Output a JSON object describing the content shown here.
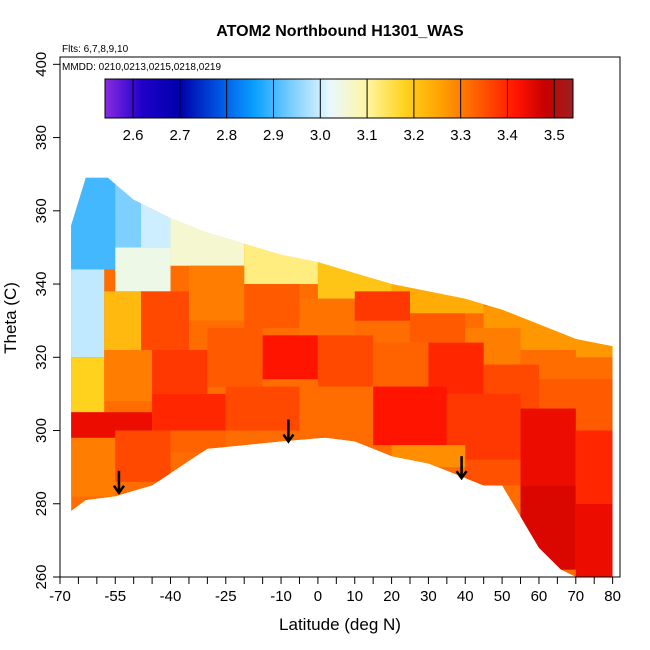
{
  "chart_data": {
    "type": "heatmap",
    "title": "ATOM2 Northbound H1301_WAS",
    "flights_note": "Flts: 6,7,8,9,10",
    "dates_note": "MMDD: 0210,0213,0215,0218,0219",
    "xlabel": "Latitude (deg N)",
    "ylabel": "Theta (C)",
    "xlim": [
      -70,
      82
    ],
    "ylim": [
      260,
      402
    ],
    "x_ticks": [
      -70,
      -55,
      -40,
      -25,
      -10,
      0,
      10,
      20,
      30,
      40,
      50,
      60,
      70,
      80
    ],
    "x_tick_labels": [
      "-70",
      "-55",
      "-40",
      "-25",
      "-10",
      "0",
      "10",
      "20",
      "30",
      "40",
      "50",
      "60",
      "70",
      "80"
    ],
    "x_minor_ticks": [
      -65,
      -60,
      -50,
      -45,
      -35,
      -30,
      -20,
      -15,
      -5,
      5,
      15,
      25,
      35,
      45,
      55,
      65,
      75
    ],
    "y_ticks": [
      260,
      280,
      300,
      320,
      340,
      360,
      380,
      400
    ],
    "y_tick_labels": [
      "260",
      "280",
      "300",
      "320",
      "340",
      "360",
      "380",
      "400"
    ],
    "colorbar": {
      "range": [
        2.54,
        3.54
      ],
      "ticks": [
        2.6,
        2.7,
        2.8,
        2.9,
        3.0,
        3.1,
        3.2,
        3.3,
        3.4,
        3.5
      ],
      "tick_labels": [
        "2.6",
        "2.7",
        "2.8",
        "2.9",
        "3.0",
        "3.1",
        "3.2",
        "3.3",
        "3.4",
        "3.5"
      ],
      "stops": [
        {
          "v": 2.54,
          "color": "#8a2be2"
        },
        {
          "v": 2.62,
          "color": "#1e00c8"
        },
        {
          "v": 2.7,
          "color": "#0000aa"
        },
        {
          "v": 2.78,
          "color": "#0050e0"
        },
        {
          "v": 2.86,
          "color": "#0aa0ff"
        },
        {
          "v": 2.94,
          "color": "#7ccfff"
        },
        {
          "v": 3.02,
          "color": "#e8f8ff"
        },
        {
          "v": 3.1,
          "color": "#fff6a0"
        },
        {
          "v": 3.18,
          "color": "#ffd21e"
        },
        {
          "v": 3.26,
          "color": "#ffa000"
        },
        {
          "v": 3.34,
          "color": "#ff5a00"
        },
        {
          "v": 3.42,
          "color": "#ff1400"
        },
        {
          "v": 3.48,
          "color": "#c80000"
        },
        {
          "v": 3.54,
          "color": "#9b2020"
        }
      ]
    },
    "domain_top": [
      [
        -67,
        356
      ],
      [
        -63,
        369
      ],
      [
        -57,
        369
      ],
      [
        -50,
        363
      ],
      [
        -40,
        358
      ],
      [
        -30,
        354
      ],
      [
        -20,
        351
      ],
      [
        -10,
        348
      ],
      [
        0,
        346
      ],
      [
        10,
        343
      ],
      [
        20,
        340
      ],
      [
        30,
        338
      ],
      [
        40,
        336
      ],
      [
        50,
        333
      ],
      [
        60,
        329
      ],
      [
        70,
        325
      ],
      [
        80,
        323
      ],
      [
        80,
        312
      ]
    ],
    "domain_bottom": [
      [
        80,
        260
      ],
      [
        70,
        260
      ],
      [
        66,
        262
      ],
      [
        60,
        268
      ],
      [
        50,
        285
      ],
      [
        45,
        285
      ],
      [
        40,
        287
      ],
      [
        30,
        291
      ],
      [
        20,
        293
      ],
      [
        10,
        297
      ],
      [
        2,
        298
      ],
      [
        -10,
        297
      ],
      [
        -20,
        296
      ],
      [
        -30,
        295
      ],
      [
        -45,
        285
      ],
      [
        -55,
        282
      ],
      [
        -63,
        281
      ],
      [
        -67,
        278
      ]
    ],
    "cells": [
      {
        "x": [
          -67,
          -55
        ],
        "y": [
          344,
          370
        ],
        "v": 2.9
      },
      {
        "x": [
          -67,
          -58
        ],
        "y": [
          320,
          344
        ],
        "v": 2.99
      },
      {
        "x": [
          -55,
          -48
        ],
        "y": [
          350,
          368
        ],
        "v": 2.94
      },
      {
        "x": [
          -55,
          -40
        ],
        "y": [
          338,
          350
        ],
        "v": 3.04
      },
      {
        "x": [
          -48,
          -40
        ],
        "y": [
          350,
          362
        ],
        "v": 3.0
      },
      {
        "x": [
          -40,
          -20
        ],
        "y": [
          345,
          360
        ],
        "v": 3.06
      },
      {
        "x": [
          -20,
          0
        ],
        "y": [
          340,
          352
        ],
        "v": 3.12
      },
      {
        "x": [
          0,
          20
        ],
        "y": [
          336,
          346
        ],
        "v": 3.2
      },
      {
        "x": [
          20,
          45
        ],
        "y": [
          332,
          340
        ],
        "v": 3.24
      },
      {
        "x": [
          45,
          80
        ],
        "y": [
          320,
          334
        ],
        "v": 3.27
      },
      {
        "x": [
          -58,
          -48
        ],
        "y": [
          320,
          338
        ],
        "v": 3.22
      },
      {
        "x": [
          -48,
          -35
        ],
        "y": [
          322,
          338
        ],
        "v": 3.36
      },
      {
        "x": [
          -35,
          -20
        ],
        "y": [
          330,
          345
        ],
        "v": 3.3
      },
      {
        "x": [
          -20,
          -5
        ],
        "y": [
          328,
          340
        ],
        "v": 3.34
      },
      {
        "x": [
          -5,
          10
        ],
        "y": [
          326,
          336
        ],
        "v": 3.31
      },
      {
        "x": [
          10,
          25
        ],
        "y": [
          330,
          338
        ],
        "v": 3.38
      },
      {
        "x": [
          25,
          40
        ],
        "y": [
          324,
          332
        ],
        "v": 3.34
      },
      {
        "x": [
          40,
          55
        ],
        "y": [
          318,
          328
        ],
        "v": 3.3
      },
      {
        "x": [
          55,
          70
        ],
        "y": [
          314,
          322
        ],
        "v": 3.32
      },
      {
        "x": [
          -67,
          -58
        ],
        "y": [
          305,
          320
        ],
        "v": 3.18
      },
      {
        "x": [
          -58,
          -45
        ],
        "y": [
          308,
          322
        ],
        "v": 3.3
      },
      {
        "x": [
          -45,
          -30
        ],
        "y": [
          310,
          322
        ],
        "v": 3.38
      },
      {
        "x": [
          -30,
          -15
        ],
        "y": [
          312,
          328
        ],
        "v": 3.34
      },
      {
        "x": [
          -15,
          0
        ],
        "y": [
          314,
          326
        ],
        "v": 3.42
      },
      {
        "x": [
          0,
          15
        ],
        "y": [
          312,
          326
        ],
        "v": 3.36
      },
      {
        "x": [
          15,
          30
        ],
        "y": [
          312,
          324
        ],
        "v": 3.33
      },
      {
        "x": [
          30,
          45
        ],
        "y": [
          310,
          324
        ],
        "v": 3.4
      },
      {
        "x": [
          45,
          60
        ],
        "y": [
          306,
          318
        ],
        "v": 3.36
      },
      {
        "x": [
          60,
          80
        ],
        "y": [
          300,
          314
        ],
        "v": 3.34
      },
      {
        "x": [
          -67,
          -45
        ],
        "y": [
          298,
          305
        ],
        "v": 3.44
      },
      {
        "x": [
          -45,
          -25
        ],
        "y": [
          300,
          310
        ],
        "v": 3.4
      },
      {
        "x": [
          -25,
          -5
        ],
        "y": [
          300,
          312
        ],
        "v": 3.36
      },
      {
        "x": [
          -5,
          15
        ],
        "y": [
          298,
          312
        ],
        "v": 3.32
      },
      {
        "x": [
          15,
          35
        ],
        "y": [
          296,
          312
        ],
        "v": 3.42
      },
      {
        "x": [
          35,
          55
        ],
        "y": [
          292,
          310
        ],
        "v": 3.38
      },
      {
        "x": [
          55,
          70
        ],
        "y": [
          285,
          306
        ],
        "v": 3.44
      },
      {
        "x": [
          70,
          80
        ],
        "y": [
          280,
          300
        ],
        "v": 3.4
      },
      {
        "x": [
          -67,
          -55
        ],
        "y": [
          282,
          298
        ],
        "v": 3.3
      },
      {
        "x": [
          -55,
          -40
        ],
        "y": [
          286,
          300
        ],
        "v": 3.36
      },
      {
        "x": [
          -40,
          -25
        ],
        "y": [
          294,
          300
        ],
        "v": 3.33
      },
      {
        "x": [
          20,
          40
        ],
        "y": [
          290,
          296
        ],
        "v": 3.28
      },
      {
        "x": [
          40,
          55
        ],
        "y": [
          285,
          292
        ],
        "v": 3.35
      },
      {
        "x": [
          55,
          70
        ],
        "y": [
          262,
          285
        ],
        "v": 3.46
      },
      {
        "x": [
          70,
          80
        ],
        "y": [
          260,
          280
        ],
        "v": 3.44
      }
    ],
    "arrows": [
      {
        "x": -54,
        "y_from": 289,
        "y_to": 283
      },
      {
        "x": -8,
        "y_from": 303,
        "y_to": 297
      },
      {
        "x": 39,
        "y_from": 293,
        "y_to": 287
      }
    ]
  }
}
